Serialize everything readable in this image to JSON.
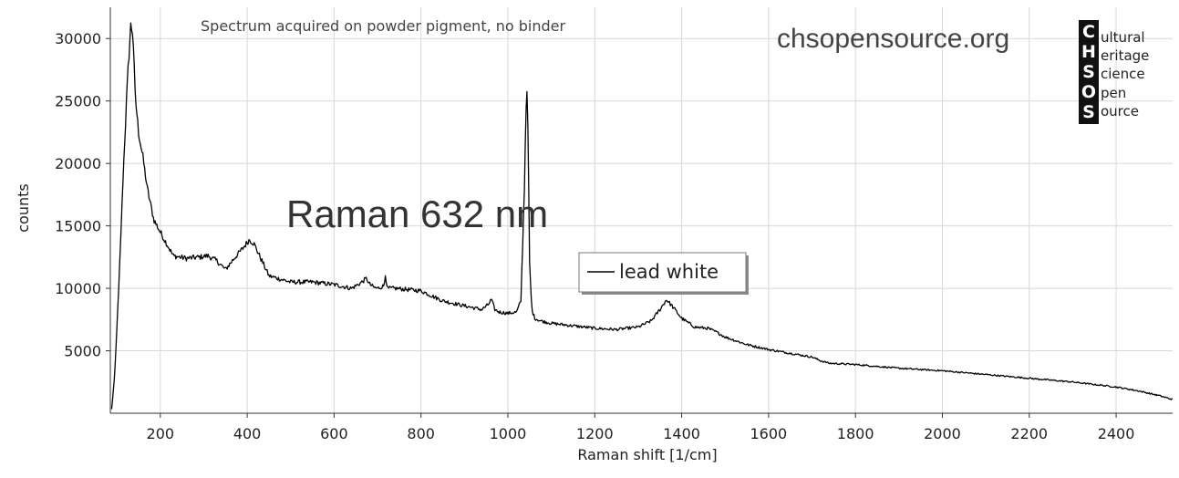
{
  "chart_data": {
    "type": "line",
    "subtitle": "Spectrum acquired on powder pigment, no binder",
    "title": "Raman 632 nm",
    "xlabel": "Raman shift [1/cm]",
    "ylabel": "counts",
    "xlim": [
      85,
      2530
    ],
    "ylim": [
      0,
      32500
    ],
    "xticks": [
      200,
      400,
      600,
      800,
      1000,
      1200,
      1400,
      1600,
      1800,
      2000,
      2200,
      2400
    ],
    "yticks": [
      5000,
      10000,
      15000,
      20000,
      25000,
      30000
    ],
    "grid": true,
    "legend_position": "center-right",
    "series": [
      {
        "name": "lead white",
        "color": "#000000",
        "x": [
          88,
          95,
          105,
          115,
          125,
          132,
          137,
          142,
          150,
          160,
          170,
          185,
          200,
          230,
          260,
          290,
          310,
          330,
          350,
          370,
          390,
          405,
          415,
          430,
          450,
          500,
          550,
          600,
          640,
          660,
          675,
          680,
          690,
          700,
          715,
          718,
          722,
          740,
          800,
          850,
          900,
          940,
          955,
          962,
          970,
          980,
          1000,
          1020,
          1030,
          1038,
          1043,
          1046,
          1050,
          1055,
          1062,
          1075,
          1100,
          1150,
          1200,
          1250,
          1300,
          1330,
          1350,
          1365,
          1380,
          1400,
          1430,
          1460,
          1480,
          1500,
          1550,
          1600,
          1650,
          1700,
          1720,
          1740,
          1800,
          1900,
          2000,
          2100,
          2200,
          2300,
          2400,
          2450,
          2500,
          2530
        ],
        "y": [
          300,
          3000,
          10500,
          19500,
          27000,
          31000,
          30500,
          25500,
          22500,
          20500,
          18000,
          15500,
          14500,
          12600,
          12400,
          12500,
          12600,
          12200,
          11500,
          12400,
          13200,
          13900,
          13600,
          12500,
          11000,
          10500,
          10500,
          10300,
          10000,
          10400,
          10800,
          10400,
          10100,
          10000,
          10200,
          11200,
          10000,
          10000,
          9800,
          9000,
          8600,
          8300,
          8700,
          9100,
          8300,
          8100,
          8000,
          8100,
          9000,
          18000,
          26500,
          23000,
          12000,
          8300,
          7600,
          7400,
          7200,
          7000,
          6800,
          6700,
          6900,
          7400,
          8300,
          9100,
          8500,
          7600,
          6900,
          6800,
          6500,
          6100,
          5500,
          5100,
          4800,
          4500,
          4200,
          4000,
          3900,
          3600,
          3400,
          3100,
          2800,
          2500,
          2100,
          1800,
          1400,
          1100
        ]
      }
    ]
  },
  "annotations": {
    "site": "chsopensource.org",
    "logo_letters": [
      "C",
      "H",
      "S",
      "O",
      "S"
    ],
    "logo_words": [
      "ultural",
      "eritage",
      "cience",
      "pen",
      "ource"
    ]
  }
}
